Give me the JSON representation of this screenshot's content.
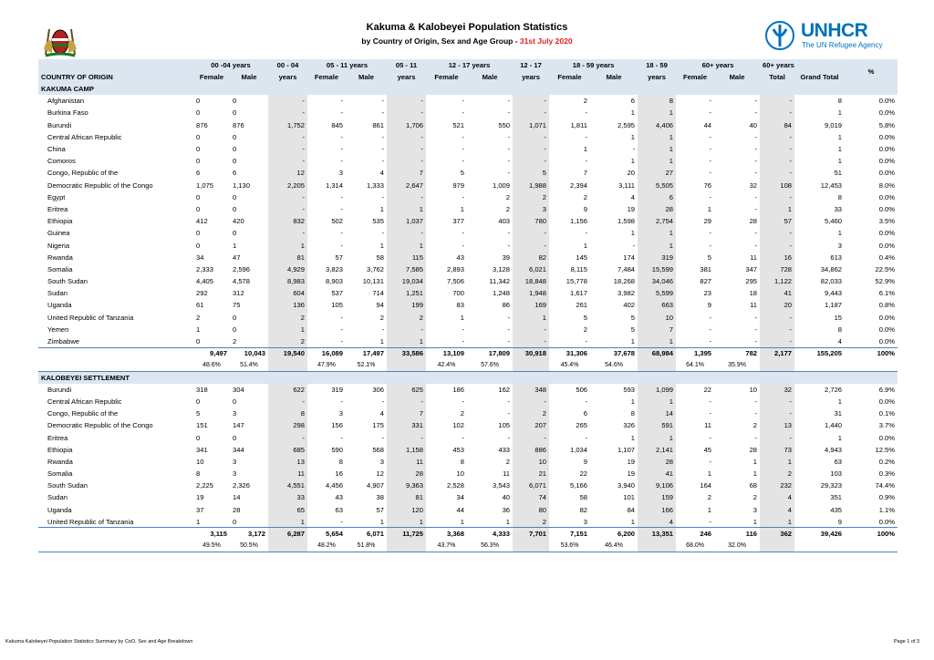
{
  "header": {
    "title": "Kakuma & Kalobeyei Population Statistics",
    "subtitle": "by Country of Origin, Sex and Age Group - ",
    "date": "31st July 2020",
    "logo_name": "UNHCR",
    "logo_tagline": "The UN Refugee Agency"
  },
  "table": {
    "header_top": [
      "00 -04 years",
      "00 - 04",
      "05 - 11 years",
      "05 - 11",
      "12 - 17 years",
      "12 - 17",
      "18 - 59 years",
      "18 - 59",
      "60+ years",
      "60+ years",
      "%"
    ],
    "header_bottom": [
      "COUNTRY OF ORIGIN",
      "Female",
      "Male",
      "years",
      "Female",
      "Male",
      "years",
      "Female",
      "Male",
      "years",
      "Female",
      "Male",
      "years",
      "Female",
      "Male",
      "Total",
      "Grand Total"
    ],
    "sections": [
      {
        "name": "KAKUMA CAMP",
        "rows": [
          [
            "Afghanistan",
            "0",
            "0",
            "-",
            "-",
            "-",
            "-",
            "-",
            "-",
            "-",
            "2",
            "6",
            "8",
            "-",
            "-",
            "-",
            "8",
            "0.0%"
          ],
          [
            "Burkina Faso",
            "0",
            "0",
            "-",
            "-",
            "-",
            "-",
            "-",
            "-",
            "-",
            "-",
            "1",
            "1",
            "-",
            "-",
            "-",
            "1",
            "0.0%"
          ],
          [
            "Burundi",
            "876",
            "876",
            "1,752",
            "845",
            "861",
            "1,706",
            "521",
            "550",
            "1,071",
            "1,811",
            "2,595",
            "4,406",
            "44",
            "40",
            "84",
            "9,019",
            "5.8%"
          ],
          [
            "Central African Republic",
            "0",
            "0",
            "-",
            "-",
            "-",
            "-",
            "-",
            "-",
            "-",
            "-",
            "1",
            "1",
            "-",
            "-",
            "-",
            "1",
            "0.0%"
          ],
          [
            "China",
            "0",
            "0",
            "-",
            "-",
            "-",
            "-",
            "-",
            "-",
            "-",
            "1",
            "-",
            "1",
            "-",
            "-",
            "-",
            "1",
            "0.0%"
          ],
          [
            "Comoros",
            "0",
            "0",
            "-",
            "-",
            "-",
            "-",
            "-",
            "-",
            "-",
            "-",
            "1",
            "1",
            "-",
            "-",
            "-",
            "1",
            "0.0%"
          ],
          [
            "Congo, Republic of the",
            "6",
            "6",
            "12",
            "3",
            "4",
            "7",
            "5",
            "-",
            "5",
            "7",
            "20",
            "27",
            "-",
            "-",
            "-",
            "51",
            "0.0%"
          ],
          [
            "Democratic Republic of the Congo",
            "1,075",
            "1,130",
            "2,205",
            "1,314",
            "1,333",
            "2,647",
            "979",
            "1,009",
            "1,988",
            "2,394",
            "3,111",
            "5,505",
            "76",
            "32",
            "108",
            "12,453",
            "8.0%"
          ],
          [
            "Egypt",
            "0",
            "0",
            "-",
            "-",
            "-",
            "-",
            "-",
            "2",
            "2",
            "2",
            "4",
            "6",
            "-",
            "-",
            "-",
            "8",
            "0.0%"
          ],
          [
            "Eritrea",
            "0",
            "0",
            "-",
            "-",
            "1",
            "1",
            "1",
            "2",
            "3",
            "9",
            "19",
            "28",
            "1",
            "-",
            "1",
            "33",
            "0.0%"
          ],
          [
            "Ethiopia",
            "412",
            "420",
            "832",
            "502",
            "535",
            "1,037",
            "377",
            "403",
            "780",
            "1,156",
            "1,598",
            "2,754",
            "29",
            "28",
            "57",
            "5,460",
            "3.5%"
          ],
          [
            "Guinea",
            "0",
            "0",
            "-",
            "-",
            "-",
            "-",
            "-",
            "-",
            "-",
            "-",
            "1",
            "1",
            "-",
            "-",
            "-",
            "1",
            "0.0%"
          ],
          [
            "Nigeria",
            "0",
            "1",
            "1",
            "-",
            "1",
            "1",
            "-",
            "-",
            "-",
            "1",
            "-",
            "1",
            "-",
            "-",
            "-",
            "3",
            "0.0%"
          ],
          [
            "Rwanda",
            "34",
            "47",
            "81",
            "57",
            "58",
            "115",
            "43",
            "39",
            "82",
            "145",
            "174",
            "319",
            "5",
            "11",
            "16",
            "613",
            "0.4%"
          ],
          [
            "Somalia",
            "2,333",
            "2,596",
            "4,929",
            "3,823",
            "3,762",
            "7,585",
            "2,893",
            "3,128",
            "6,021",
            "8,115",
            "7,484",
            "15,599",
            "381",
            "347",
            "728",
            "34,862",
            "22.5%"
          ],
          [
            "South Sudan",
            "4,405",
            "4,578",
            "8,983",
            "8,903",
            "10,131",
            "19,034",
            "7,506",
            "11,342",
            "18,848",
            "15,778",
            "18,268",
            "34,046",
            "827",
            "295",
            "1,122",
            "82,033",
            "52.9%"
          ],
          [
            "Sudan",
            "292",
            "312",
            "604",
            "537",
            "714",
            "1,251",
            "700",
            "1,248",
            "1,948",
            "1,617",
            "3,982",
            "5,599",
            "23",
            "18",
            "41",
            "9,443",
            "6.1%"
          ],
          [
            "Uganda",
            "61",
            "75",
            "136",
            "105",
            "94",
            "199",
            "83",
            "86",
            "169",
            "261",
            "402",
            "663",
            "9",
            "11",
            "20",
            "1,187",
            "0.8%"
          ],
          [
            "United Republic of Tanzania",
            "2",
            "0",
            "2",
            "-",
            "2",
            "2",
            "1",
            "-",
            "1",
            "5",
            "5",
            "10",
            "-",
            "-",
            "-",
            "15",
            "0.0%"
          ],
          [
            "Yemen",
            "1",
            "0",
            "1",
            "-",
            "-",
            "-",
            "-",
            "-",
            "-",
            "2",
            "5",
            "7",
            "-",
            "-",
            "-",
            "8",
            "0.0%"
          ],
          [
            "Zimbabwe",
            "0",
            "2",
            "2",
            "-",
            "1",
            "1",
            "-",
            "-",
            "-",
            "-",
            "1",
            "1",
            "-",
            "-",
            "-",
            "4",
            "0.0%"
          ]
        ],
        "total": [
          "9,497",
          "10,043",
          "19,540",
          "16,089",
          "17,497",
          "33,586",
          "13,109",
          "17,809",
          "30,918",
          "31,306",
          "37,678",
          "68,984",
          "1,395",
          "782",
          "2,177",
          "155,205",
          "100%"
        ],
        "percent": [
          [
            "48.6%",
            "51.4%"
          ],
          [
            "47.9%",
            "52.1%"
          ],
          [
            "42.4%",
            "57.6%"
          ],
          [
            "45.4%",
            "54.6%"
          ],
          [
            "64.1%",
            "35.9%"
          ]
        ]
      },
      {
        "name": "KALOBEYEI SETTLEMENT",
        "rows": [
          [
            "Burundi",
            "318",
            "304",
            "622",
            "319",
            "306",
            "625",
            "186",
            "162",
            "348",
            "506",
            "593",
            "1,099",
            "22",
            "10",
            "32",
            "2,726",
            "6.9%"
          ],
          [
            "Central African Republic",
            "0",
            "0",
            "-",
            "-",
            "-",
            "-",
            "-",
            "-",
            "-",
            "-",
            "1",
            "1",
            "-",
            "-",
            "-",
            "1",
            "0.0%"
          ],
          [
            "Congo, Republic of the",
            "5",
            "3",
            "8",
            "3",
            "4",
            "7",
            "2",
            "-",
            "2",
            "6",
            "8",
            "14",
            "-",
            "-",
            "-",
            "31",
            "0.1%"
          ],
          [
            "Democratic Republic of the Congo",
            "151",
            "147",
            "298",
            "156",
            "175",
            "331",
            "102",
            "105",
            "207",
            "265",
            "326",
            "591",
            "11",
            "2",
            "13",
            "1,440",
            "3.7%"
          ],
          [
            "Eritrea",
            "0",
            "0",
            "-",
            "-",
            "-",
            "-",
            "-",
            "-",
            "-",
            "-",
            "1",
            "1",
            "-",
            "-",
            "-",
            "1",
            "0.0%"
          ],
          [
            "Ethiopia",
            "341",
            "344",
            "685",
            "590",
            "568",
            "1,158",
            "453",
            "433",
            "886",
            "1,034",
            "1,107",
            "2,141",
            "45",
            "28",
            "73",
            "4,943",
            "12.5%"
          ],
          [
            "Rwanda",
            "10",
            "3",
            "13",
            "8",
            "3",
            "11",
            "8",
            "2",
            "10",
            "9",
            "19",
            "28",
            "-",
            "1",
            "1",
            "63",
            "0.2%"
          ],
          [
            "Somalia",
            "8",
            "3",
            "11",
            "16",
            "12",
            "28",
            "10",
            "11",
            "21",
            "22",
            "19",
            "41",
            "1",
            "1",
            "2",
            "103",
            "0.3%"
          ],
          [
            "South Sudan",
            "2,225",
            "2,326",
            "4,551",
            "4,456",
            "4,907",
            "9,363",
            "2,528",
            "3,543",
            "6,071",
            "5,166",
            "3,940",
            "9,106",
            "164",
            "68",
            "232",
            "29,323",
            "74.4%"
          ],
          [
            "Sudan",
            "19",
            "14",
            "33",
            "43",
            "38",
            "81",
            "34",
            "40",
            "74",
            "58",
            "101",
            "159",
            "2",
            "2",
            "4",
            "351",
            "0.9%"
          ],
          [
            "Uganda",
            "37",
            "28",
            "65",
            "63",
            "57",
            "120",
            "44",
            "36",
            "80",
            "82",
            "84",
            "166",
            "1",
            "3",
            "4",
            "435",
            "1.1%"
          ],
          [
            "United Republic of Tanzania",
            "1",
            "0",
            "1",
            "-",
            "1",
            "1",
            "1",
            "1",
            "2",
            "3",
            "1",
            "4",
            "-",
            "1",
            "1",
            "9",
            "0.0%"
          ]
        ],
        "total": [
          "3,115",
          "3,172",
          "6,287",
          "5,654",
          "6,071",
          "11,725",
          "3,368",
          "4,333",
          "7,701",
          "7,151",
          "6,200",
          "13,351",
          "246",
          "116",
          "362",
          "39,426",
          "100%"
        ],
        "percent": [
          [
            "49.5%",
            "50.5%"
          ],
          [
            "48.2%",
            "51.8%"
          ],
          [
            "43.7%",
            "56.3%"
          ],
          [
            "53.6%",
            "46.4%"
          ],
          [
            "68.0%",
            "32.0%"
          ]
        ]
      }
    ]
  },
  "footer": {
    "left": "Kakuma Kalobeyei Population Statistics Summary by CoO, Sex and Age Breakdown",
    "right": "Page 1 of 3"
  }
}
